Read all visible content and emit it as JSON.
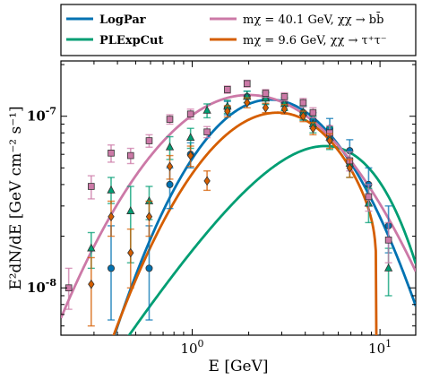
{
  "chart_data": {
    "type": "scatter",
    "title": "",
    "xlabel": "E [GeV]",
    "ylabel": "E²dN/dE [GeV cm⁻² s⁻¹]",
    "xscale": "log",
    "yscale": "log",
    "xlim": [
      0.2,
      15.5
    ],
    "ylim": [
      5.3e-09,
      2.1e-07
    ],
    "grid": false,
    "legend_placement": "top (two columns, boxed)",
    "x_ticks": [
      {
        "value": 1,
        "label_base": "10",
        "label_exp": "0"
      },
      {
        "value": 10,
        "label_base": "10",
        "label_exp": "1"
      }
    ],
    "y_ticks": [
      {
        "value": 1e-08,
        "label_base": "10",
        "label_exp": "-8"
      },
      {
        "value": 1e-07,
        "label_base": "10",
        "label_exp": "-7"
      }
    ],
    "lines": [
      {
        "key": "logpar",
        "name": "LogPar",
        "color": "#0072b2",
        "model": "logparabola",
        "params": {
          "amp": 1.25e-07,
          "peak": 2.6,
          "curv": 2.0
        }
      },
      {
        "key": "plexp",
        "name": "PLExpCut",
        "color": "#009e73",
        "model": "plexpcut",
        "params": {
          "K": 2.3e-08,
          "gamma": 0.3,
          "Ec": 3.0
        }
      },
      {
        "key": "bbar",
        "name": "m_χ = 40.1 GeV, χχ → b b̄",
        "label_text": "mχ = 40.1 GeV, χχ → bb̄",
        "color": "#cc79a7",
        "model": "logparabola",
        "params": {
          "amp": 1.33e-07,
          "peak": 2.0,
          "curv": 1.3
        }
      },
      {
        "key": "tau",
        "name": "m_χ = 9.6 GeV, χχ → τ⁺τ⁻",
        "label_text": "mχ = 9.6 GeV, χχ → τ⁺τ⁻",
        "color": "#d55e00",
        "model": "tau",
        "params": {
          "amp": 1.12e-07,
          "peak": 3.0,
          "a": 1.65,
          "b": 1.9,
          "cutoff": 9.6
        }
      }
    ],
    "series": [
      {
        "key": "logpar_pts",
        "color": "#0072b2",
        "marker": "circle",
        "points": [
          {
            "x": 0.37,
            "y": 1.3e-08,
            "lo": 6.5e-09,
            "hi": 2.3e-08
          },
          {
            "x": 0.59,
            "y": 1.3e-08,
            "lo": 6.5e-09,
            "hi": 2.3e-08
          },
          {
            "x": 0.76,
            "y": 4e-08,
            "lo": 2.9e-08,
            "hi": 5e-08
          },
          {
            "x": 0.98,
            "y": 6e-08,
            "lo": 5e-08,
            "hi": 7e-08
          },
          {
            "x": 1.54,
            "y": 1.12e-07,
            "lo": 1.02e-07,
            "hi": 1.22e-07
          },
          {
            "x": 1.96,
            "y": 1.3e-07,
            "lo": 1.2e-07,
            "hi": 1.4e-07
          },
          {
            "x": 2.46,
            "y": 1.28e-07,
            "lo": 1.18e-07,
            "hi": 1.38e-07
          },
          {
            "x": 3.1,
            "y": 1.18e-07,
            "lo": 1.08e-07,
            "hi": 1.28e-07
          },
          {
            "x": 3.9,
            "y": 1.05e-07,
            "lo": 9.5e-08,
            "hi": 1.15e-07
          },
          {
            "x": 4.4,
            "y": 9.5e-08,
            "lo": 8.5e-08,
            "hi": 1.05e-07
          },
          {
            "x": 5.4,
            "y": 8.5e-08,
            "lo": 7.4e-08,
            "hi": 9.7e-08
          },
          {
            "x": 6.9,
            "y": 6.3e-08,
            "lo": 5.3e-08,
            "hi": 7.3e-08
          },
          {
            "x": 8.7,
            "y": 4e-08,
            "lo": 3e-08,
            "hi": 5e-08
          },
          {
            "x": 11.1,
            "y": 2.3e-08,
            "lo": 1.6e-08,
            "hi": 3e-08
          }
        ]
      },
      {
        "key": "plexp_pts",
        "color": "#009e73",
        "marker": "triangle",
        "points": [
          {
            "x": 0.29,
            "y": 1.7e-08,
            "lo": 1.3e-08,
            "hi": 2.1e-08
          },
          {
            "x": 0.37,
            "y": 3.7e-08,
            "lo": 3.1e-08,
            "hi": 4.4e-08
          },
          {
            "x": 0.47,
            "y": 2.8e-08,
            "lo": 1.4e-08,
            "hi": 3.9e-08
          },
          {
            "x": 0.59,
            "y": 3.2e-08,
            "lo": 2.5e-08,
            "hi": 3.9e-08
          },
          {
            "x": 0.76,
            "y": 6.6e-08,
            "lo": 5.6e-08,
            "hi": 7.6e-08
          },
          {
            "x": 0.98,
            "y": 7.5e-08,
            "lo": 6.5e-08,
            "hi": 8.5e-08
          },
          {
            "x": 1.2,
            "y": 1.08e-07,
            "lo": 9.8e-08,
            "hi": 1.18e-07
          },
          {
            "x": 1.54,
            "y": 1.14e-07,
            "lo": 1.04e-07,
            "hi": 1.24e-07
          },
          {
            "x": 1.96,
            "y": 1.3e-07,
            "lo": 1.2e-07,
            "hi": 1.4e-07
          },
          {
            "x": 2.46,
            "y": 1.27e-07,
            "lo": 1.17e-07,
            "hi": 1.37e-07
          },
          {
            "x": 3.1,
            "y": 1.18e-07,
            "lo": 1.08e-07,
            "hi": 1.28e-07
          },
          {
            "x": 3.9,
            "y": 1.05e-07,
            "lo": 9.5e-08,
            "hi": 1.15e-07
          },
          {
            "x": 4.4,
            "y": 9e-08,
            "lo": 8e-08,
            "hi": 1e-07
          },
          {
            "x": 5.4,
            "y": 7.5e-08,
            "lo": 6.4e-08,
            "hi": 8.6e-08
          },
          {
            "x": 6.9,
            "y": 5.3e-08,
            "lo": 4.4e-08,
            "hi": 6.2e-08
          },
          {
            "x": 8.7,
            "y": 3.1e-08,
            "lo": 2.4e-08,
            "hi": 3.8e-08
          },
          {
            "x": 11.1,
            "y": 1.3e-08,
            "lo": 9e-09,
            "hi": 1.7e-08
          }
        ]
      },
      {
        "key": "bbar_pts",
        "color": "#cc79a7",
        "marker": "square",
        "points": [
          {
            "x": 0.22,
            "y": 1e-08,
            "lo": 7.5e-09,
            "hi": 1.3e-08
          },
          {
            "x": 0.29,
            "y": 3.9e-08,
            "lo": 3.3e-08,
            "hi": 4.5e-08
          },
          {
            "x": 0.37,
            "y": 6.1e-08,
            "lo": 5.4e-08,
            "hi": 6.8e-08
          },
          {
            "x": 0.47,
            "y": 5.9e-08,
            "lo": 5.3e-08,
            "hi": 6.5e-08
          },
          {
            "x": 0.59,
            "y": 7.2e-08,
            "lo": 6.6e-08,
            "hi": 7.8e-08
          },
          {
            "x": 0.76,
            "y": 9.6e-08,
            "lo": 9e-08,
            "hi": 1.02e-07
          },
          {
            "x": 0.98,
            "y": 1.03e-07,
            "lo": 9.6e-08,
            "hi": 1.1e-07
          },
          {
            "x": 1.2,
            "y": 8.1e-08,
            "lo": 7.5e-08,
            "hi": 8.7e-08
          },
          {
            "x": 1.54,
            "y": 1.43e-07,
            "lo": 1.36e-07,
            "hi": 1.5e-07
          },
          {
            "x": 1.96,
            "y": 1.55e-07,
            "lo": 1.48e-07,
            "hi": 1.62e-07
          },
          {
            "x": 2.46,
            "y": 1.36e-07,
            "lo": 1.29e-07,
            "hi": 1.43e-07
          },
          {
            "x": 3.1,
            "y": 1.3e-07,
            "lo": 1.23e-07,
            "hi": 1.37e-07
          },
          {
            "x": 3.9,
            "y": 1.2e-07,
            "lo": 1.13e-07,
            "hi": 1.27e-07
          },
          {
            "x": 4.4,
            "y": 1.05e-07,
            "lo": 9.8e-08,
            "hi": 1.12e-07
          },
          {
            "x": 5.4,
            "y": 8e-08,
            "lo": 7.2e-08,
            "hi": 8.8e-08
          },
          {
            "x": 6.9,
            "y": 5.5e-08,
            "lo": 4.8e-08,
            "hi": 6.2e-08
          },
          {
            "x": 8.7,
            "y": 3.4e-08,
            "lo": 2.8e-08,
            "hi": 4e-08
          },
          {
            "x": 11.1,
            "y": 1.9e-08,
            "lo": 1.4e-08,
            "hi": 2.4e-08
          }
        ]
      },
      {
        "key": "tau_pts",
        "color": "#d55e00",
        "marker": "diamond",
        "points": [
          {
            "x": 0.29,
            "y": 1.05e-08,
            "lo": 6e-09,
            "hi": 1.5e-08
          },
          {
            "x": 0.37,
            "y": 2.6e-08,
            "lo": 2e-08,
            "hi": 3.2e-08
          },
          {
            "x": 0.47,
            "y": 1.6e-08,
            "lo": 1e-08,
            "hi": 2.2e-08
          },
          {
            "x": 0.59,
            "y": 2.6e-08,
            "lo": 2e-08,
            "hi": 3.2e-08
          },
          {
            "x": 0.76,
            "y": 5.1e-08,
            "lo": 4.3e-08,
            "hi": 5.9e-08
          },
          {
            "x": 0.98,
            "y": 5.9e-08,
            "lo": 5.1e-08,
            "hi": 6.7e-08
          },
          {
            "x": 1.2,
            "y": 4.2e-08,
            "lo": 3.7e-08,
            "hi": 4.8e-08
          },
          {
            "x": 1.54,
            "y": 1.07e-07,
            "lo": 9.9e-08,
            "hi": 1.15e-07
          },
          {
            "x": 1.96,
            "y": 1.2e-07,
            "lo": 1.12e-07,
            "hi": 1.28e-07
          },
          {
            "x": 2.46,
            "y": 1.12e-07,
            "lo": 1.05e-07,
            "hi": 1.19e-07
          },
          {
            "x": 3.1,
            "y": 1.1e-07,
            "lo": 1.03e-07,
            "hi": 1.17e-07
          },
          {
            "x": 3.9,
            "y": 1e-07,
            "lo": 9.3e-08,
            "hi": 1.07e-07
          },
          {
            "x": 4.4,
            "y": 8.5e-08,
            "lo": 7.8e-08,
            "hi": 9.2e-08
          },
          {
            "x": 5.4,
            "y": 7.2e-08,
            "lo": 6.5e-08,
            "hi": 7.9e-08
          },
          {
            "x": 6.9,
            "y": 5e-08,
            "lo": 4.4e-08,
            "hi": 5.6e-08
          }
        ]
      }
    ]
  }
}
